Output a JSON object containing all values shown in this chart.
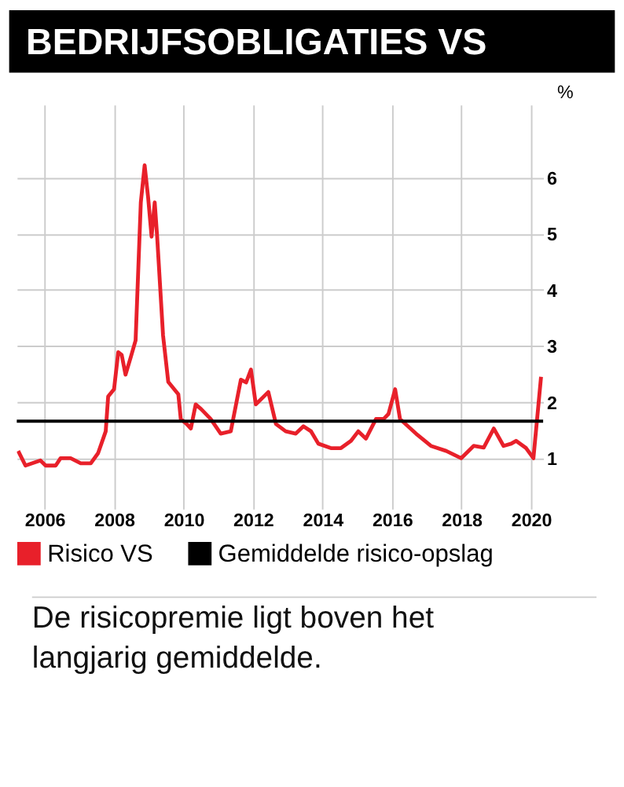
{
  "chart_data": {
    "type": "line",
    "title": "BEDRIJFSOBLIGATIES VS",
    "ylabel": "%",
    "series": [
      {
        "name": "Risico VS",
        "color": "#e8202a",
        "x": [
          2005.24,
          2005.45,
          2005.88,
          2006.03,
          2006.32,
          2006.46,
          2006.75,
          2007.04,
          2007.33,
          2007.54,
          2007.76,
          2007.83,
          2008.0,
          2008.12,
          2008.22,
          2008.33,
          2008.48,
          2008.62,
          2008.77,
          2008.88,
          2008.98,
          2009.08,
          2009.17,
          2009.24,
          2009.41,
          2009.56,
          2009.85,
          2009.92,
          2010.09,
          2010.21,
          2010.35,
          2010.5,
          2010.78,
          2011.07,
          2011.36,
          2011.65,
          2011.8,
          2011.94,
          2012.08,
          2012.44,
          2012.66,
          2012.94,
          2013.23,
          2013.45,
          2013.67,
          2013.88,
          2014.24,
          2014.53,
          2014.82,
          2015.03,
          2015.25,
          2015.54,
          2015.76,
          2015.9,
          2016.09,
          2016.23,
          2016.69,
          2017.12,
          2017.56,
          2017.99,
          2018.35,
          2018.64,
          2018.93,
          2019.21,
          2019.43,
          2019.57,
          2019.86,
          2020.07,
          2020.29
        ],
        "values": [
          1.13,
          0.87,
          0.96,
          0.87,
          0.87,
          1.0,
          1.0,
          0.91,
          0.91,
          1.09,
          1.48,
          2.1,
          2.23,
          2.89,
          2.84,
          2.49,
          2.8,
          3.1,
          5.56,
          6.22,
          5.65,
          4.95,
          5.56,
          4.95,
          3.19,
          2.36,
          2.14,
          1.7,
          1.61,
          1.53,
          1.96,
          1.88,
          1.7,
          1.44,
          1.48,
          2.4,
          2.35,
          2.58,
          1.96,
          2.18,
          1.61,
          1.48,
          1.44,
          1.57,
          1.48,
          1.26,
          1.18,
          1.18,
          1.31,
          1.48,
          1.35,
          1.7,
          1.7,
          1.79,
          2.23,
          1.7,
          1.44,
          1.22,
          1.13,
          1.0,
          1.22,
          1.19,
          1.53,
          1.22,
          1.26,
          1.31,
          1.18,
          1.0,
          2.45
        ]
      }
    ],
    "ref_lines": [
      {
        "axis": "y",
        "value": 1.66,
        "label": "Gemiddelde risico-opslag",
        "color": "#000000"
      }
    ],
    "xlim": [
      2005.2,
      2020.35
    ],
    "xticks": [
      2006,
      2008,
      2010,
      2012,
      2014,
      2016,
      2018,
      2020
    ],
    "ylim": [
      0.1,
      7.3
    ],
    "yticks": [
      1,
      2,
      3,
      4,
      5,
      6
    ],
    "grid": true,
    "legend": "bottom",
    "annotations": [
      "De risicopremie ligt boven het langjarig gemiddelde."
    ]
  }
}
